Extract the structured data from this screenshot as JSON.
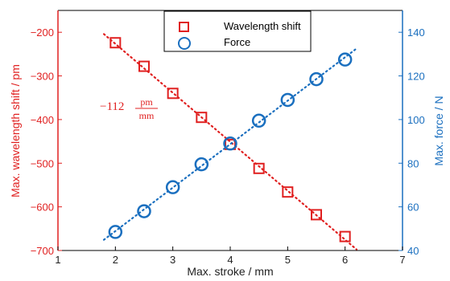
{
  "chart_data": {
    "type": "scatter",
    "x": [
      2,
      2.5,
      3,
      3.5,
      4,
      4.5,
      5,
      5.5,
      6
    ],
    "xlabel": "Max. stroke / mm",
    "xlim": [
      1,
      7
    ],
    "xticks": [
      "1",
      "2",
      "3",
      "4",
      "5",
      "6",
      "7"
    ],
    "grid": false,
    "legend_position": "top-center",
    "series": [
      {
        "name": "Wavelength shift",
        "axis": "left",
        "marker": "square",
        "color": "#e02020",
        "values": [
          -224,
          -278,
          -340,
          -395,
          -457,
          -512,
          -566,
          -618,
          -668
        ],
        "trendline": {
          "style": "dotted",
          "x_range": [
            1.8,
            6.2
          ]
        }
      },
      {
        "name": "Force",
        "axis": "right",
        "marker": "circle",
        "color": "#1a6fbf",
        "values": [
          48.5,
          58,
          69,
          79.5,
          89,
          99.5,
          109,
          118.5,
          127.5
        ],
        "trendline": {
          "style": "dotted",
          "x_range": [
            1.8,
            6.2
          ]
        }
      }
    ],
    "y_left": {
      "label": "Max. wavelength shift / pm",
      "lim": [
        -700,
        -150
      ],
      "ticks": [
        "-200",
        "-300",
        "-400",
        "-500",
        "-600",
        "-700"
      ],
      "color": "#e02020"
    },
    "y_right": {
      "label": "Max. force / N",
      "lim": [
        40,
        150
      ],
      "ticks": [
        "40",
        "60",
        "80",
        "100",
        "120",
        "140"
      ],
      "color": "#1a6fbf"
    },
    "annotation": {
      "coefficient": "−112",
      "unit_numerator": "pm",
      "unit_denominator": "mm",
      "color": "#e02020"
    }
  }
}
